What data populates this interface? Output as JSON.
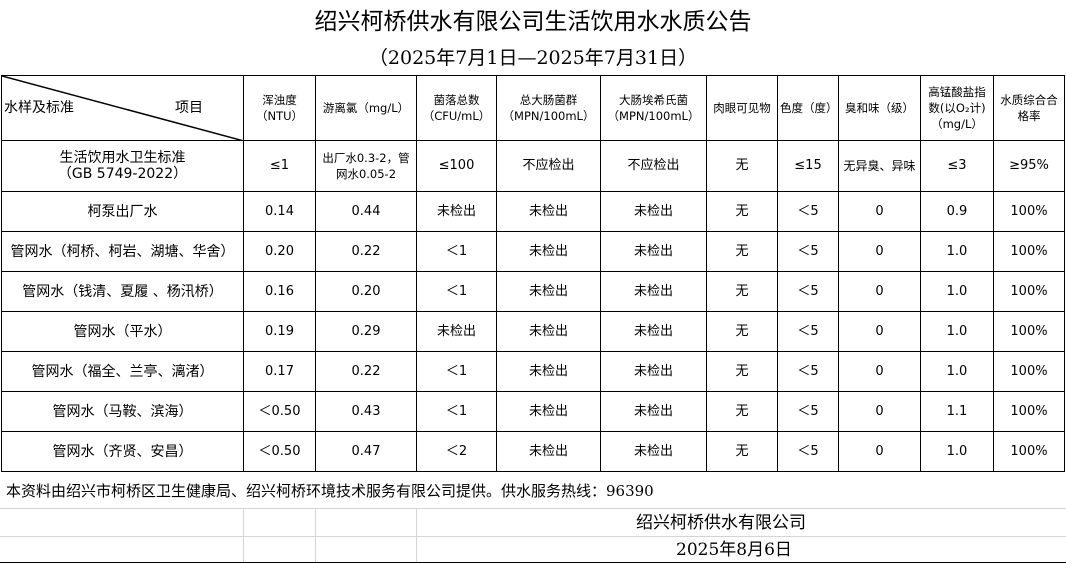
{
  "title": "绍兴柯桥供水有限公司生活饮用水水质公告",
  "period": "（2025年7月1日—2025年7月31日）",
  "header": {
    "corner_left": "水样及标准",
    "corner_right": "项目",
    "columns": [
      "浑浊度（NTU）",
      "游离氯（mg/L）",
      "菌落总数（CFU/mL）",
      "总大肠菌群（MPN/100mL）",
      "大肠埃希氏菌（MPN/100mL）",
      "肉眼可见物",
      "色度（度）",
      "臭和味（级）",
      "高锰酸盐指数(以O₂计)（mg/L）",
      "水质综合合格率"
    ]
  },
  "standard": {
    "name": "生活饮用水卫生标准",
    "code": "（GB 5749-2022）",
    "values": [
      "≤1",
      "出厂水0.3-2，管网水0.05-2",
      "≤100",
      "不应检出",
      "不应检出",
      "无",
      "≤15",
      "无异臭、异味",
      "≤3",
      "≥95%"
    ]
  },
  "rows": [
    {
      "name": "柯泵出厂水",
      "values": [
        "0.14",
        "0.44",
        "未检出",
        "未检出",
        "未检出",
        "无",
        "＜5",
        "0",
        "0.9",
        "100%"
      ]
    },
    {
      "name": "管网水（柯桥、柯岩、湖塘、华舍）",
      "values": [
        "0.20",
        "0.22",
        "＜1",
        "未检出",
        "未检出",
        "无",
        "＜5",
        "0",
        "1.0",
        "100%"
      ]
    },
    {
      "name": "管网水（钱清、夏履 、杨汛桥）",
      "values": [
        "0.16",
        "0.20",
        "＜1",
        "未检出",
        "未检出",
        "无",
        "＜5",
        "0",
        "1.0",
        "100%"
      ]
    },
    {
      "name": "管网水（平水）",
      "values": [
        "0.19",
        "0.29",
        "未检出",
        "未检出",
        "未检出",
        "无",
        "＜5",
        "0",
        "1.0",
        "100%"
      ]
    },
    {
      "name": "管网水（福全、兰亭、漓渚）",
      "values": [
        "0.17",
        "0.22",
        "＜1",
        "未检出",
        "未检出",
        "无",
        "＜5",
        "0",
        "1.0",
        "100%"
      ]
    },
    {
      "name": "管网水（马鞍、滨海）",
      "values": [
        "＜0.50",
        "0.43",
        "＜1",
        "未检出",
        "未检出",
        "无",
        "＜5",
        "0",
        "1.1",
        "100%"
      ]
    },
    {
      "name": "管网水（齐贤、安昌）",
      "values": [
        "＜0.50",
        "0.47",
        "＜2",
        "未检出",
        "未检出",
        "无",
        "＜5",
        "0",
        "1.0",
        "100%"
      ]
    }
  ],
  "footer": {
    "note": "本资料由绍兴市柯桥区卫生健康局、绍兴柯桥环境技术服务有限公司提供。供水服务热线：96390",
    "company": "绍兴柯桥供水有限公司",
    "date": "2025年8月6日"
  }
}
